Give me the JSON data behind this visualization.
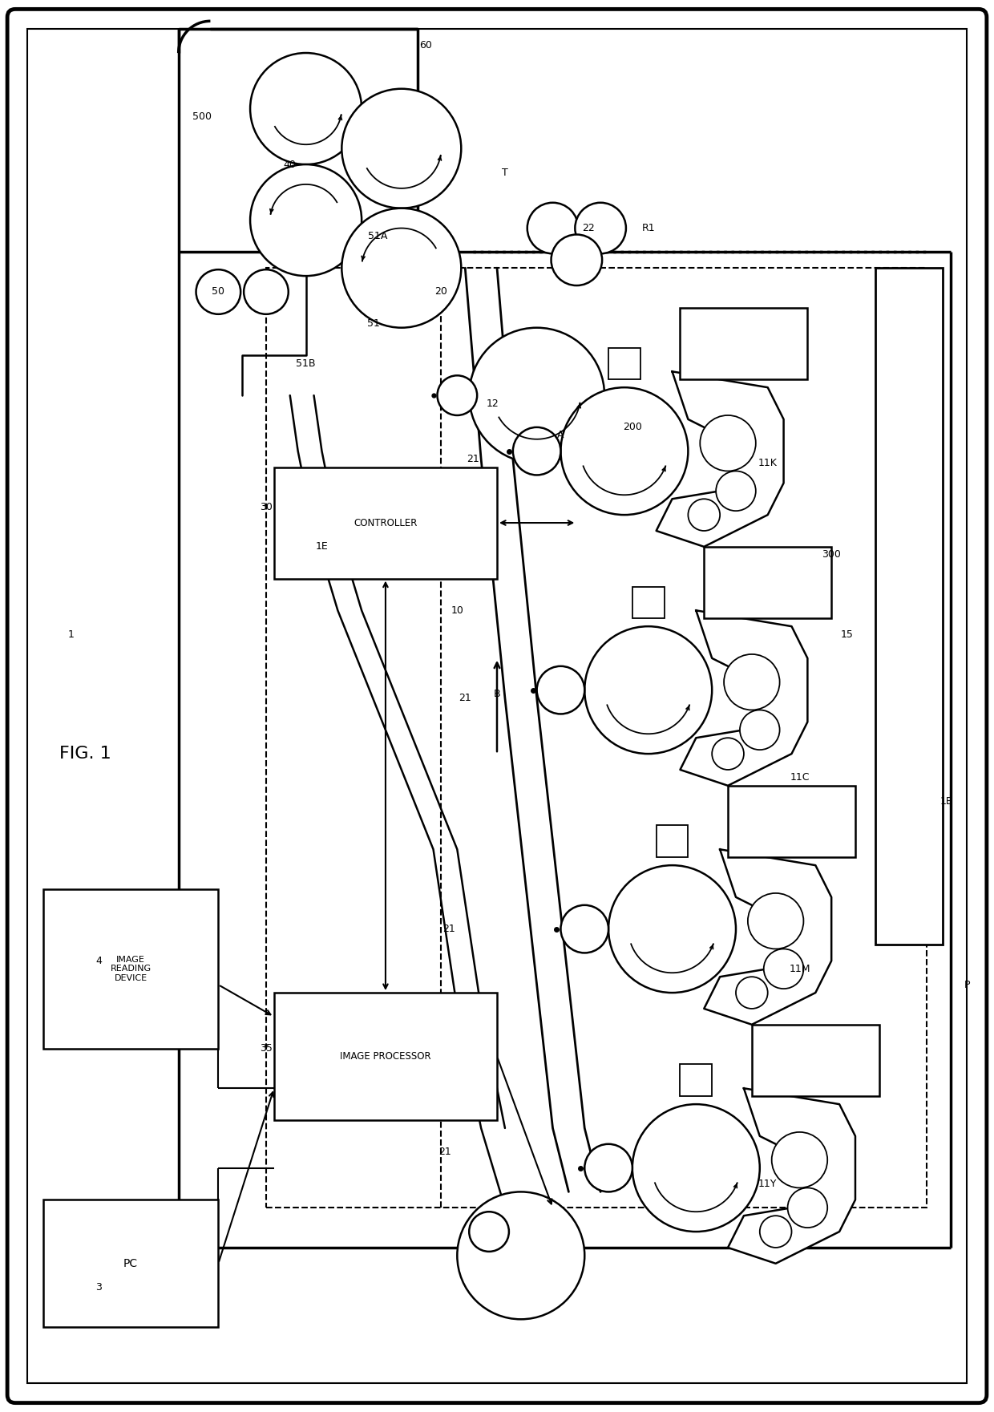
{
  "fw": 12.4,
  "fh": 17.61,
  "bg": "#ffffff",
  "lw": 1.8,
  "controller_text": "CONTROLLER",
  "image_processor_text": "IMAGE PROCESSOR",
  "image_reading_text": "IMAGE\nREADING\nDEVICE",
  "pc_text": "PC",
  "fig_label": "FIG. 1",
  "labels": {
    "1": [
      "1",
      8.5,
      97.0
    ],
    "1B": [
      "1B",
      118.5,
      76.0
    ],
    "1E": [
      "1E",
      40.0,
      108.0
    ],
    "3": [
      "3",
      12.0,
      15.0
    ],
    "4": [
      "4",
      12.0,
      56.0
    ],
    "10": [
      "10",
      57.0,
      100.0
    ],
    "11C": [
      "11C",
      100.0,
      79.0
    ],
    "11K": [
      "11K",
      96.0,
      118.5
    ],
    "11M": [
      "11M",
      100.0,
      55.0
    ],
    "11Y": [
      "11Y",
      96.0,
      28.0
    ],
    "12": [
      "12",
      61.5,
      126.0
    ],
    "15": [
      "15",
      106.0,
      97.0
    ],
    "20": [
      "20",
      55.0,
      140.0
    ],
    "21a": [
      "21",
      59.0,
      119.0
    ],
    "21b": [
      "21",
      58.0,
      89.0
    ],
    "21c": [
      "21",
      56.0,
      60.0
    ],
    "21d": [
      "21",
      55.5,
      32.0
    ],
    "22": [
      "22",
      73.5,
      148.0
    ],
    "30": [
      "30",
      33.0,
      113.0
    ],
    "35": [
      "35",
      33.0,
      45.0
    ],
    "40": [
      "40",
      36.0,
      156.0
    ],
    "50": [
      "50",
      27.0,
      140.0
    ],
    "51": [
      "51",
      46.5,
      136.0
    ],
    "51A": [
      "51A",
      47.0,
      147.0
    ],
    "51B": [
      "51B",
      38.0,
      131.0
    ],
    "60": [
      "60",
      53.0,
      171.0
    ],
    "200": [
      "200",
      79.0,
      123.0
    ],
    "300": [
      "300",
      104.0,
      107.0
    ],
    "500": [
      "500",
      25.0,
      162.0
    ],
    "T": [
      "T",
      63.0,
      155.0
    ],
    "A": [
      "A",
      70.0,
      122.0
    ],
    "B": [
      "B",
      62.0,
      89.5
    ],
    "P": [
      "P",
      121.0,
      53.0
    ],
    "R1": [
      "R1",
      81.0,
      148.0
    ]
  }
}
